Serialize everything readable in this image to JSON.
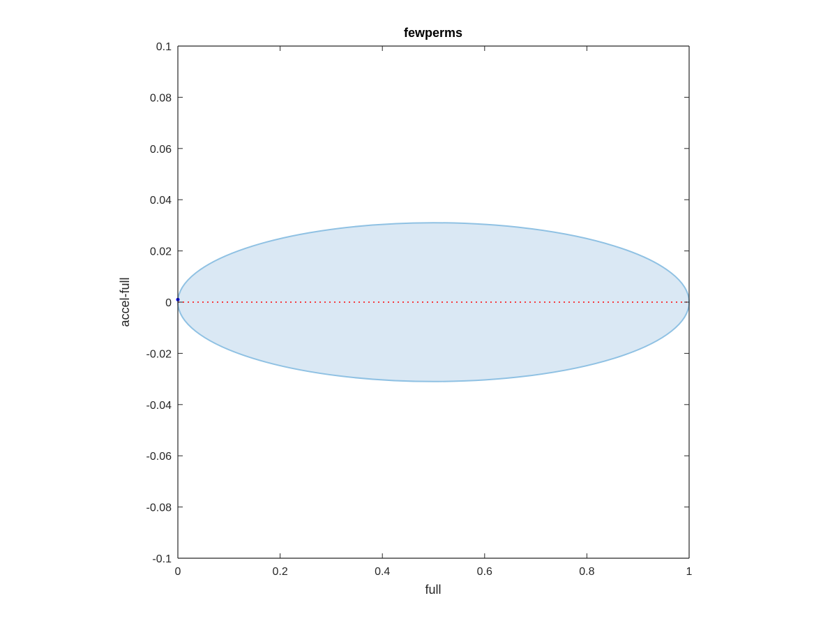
{
  "chart_data": {
    "type": "scatter",
    "title": "fewperms",
    "xlabel": "full",
    "ylabel": "accel-full",
    "xlim": [
      0,
      1
    ],
    "ylim": [
      -0.1,
      0.1
    ],
    "xticks": [
      0,
      0.2,
      0.4,
      0.6,
      0.8,
      1
    ],
    "xtick_labels": [
      "0",
      "0.2",
      "0.4",
      "0.6",
      "0.8",
      "1"
    ],
    "yticks": [
      -0.1,
      -0.08,
      -0.06,
      -0.04,
      -0.02,
      0,
      0.02,
      0.04,
      0.06,
      0.08,
      0.1
    ],
    "ytick_labels": [
      "-0.1",
      "-0.08",
      "-0.06",
      "-0.04",
      "-0.02",
      "0",
      "0.02",
      "0.04",
      "0.06",
      "0.08",
      "0.1"
    ],
    "grid": false,
    "ellipse": {
      "center": [
        0.5,
        0.0
      ],
      "semi_axis_x": 0.5,
      "semi_axis_y": 0.031,
      "fill_color": "#dae8f4",
      "edge_color": "#8fc1e3"
    },
    "reference_line": {
      "y": 0,
      "x_range": [
        0,
        1
      ],
      "style": "dotted",
      "color": "#ff0000"
    },
    "points": [
      {
        "x": 0.0,
        "y": 0.001,
        "color": "#0000ff"
      }
    ],
    "colors": {
      "axis": "#262626",
      "title": "#000000"
    }
  }
}
